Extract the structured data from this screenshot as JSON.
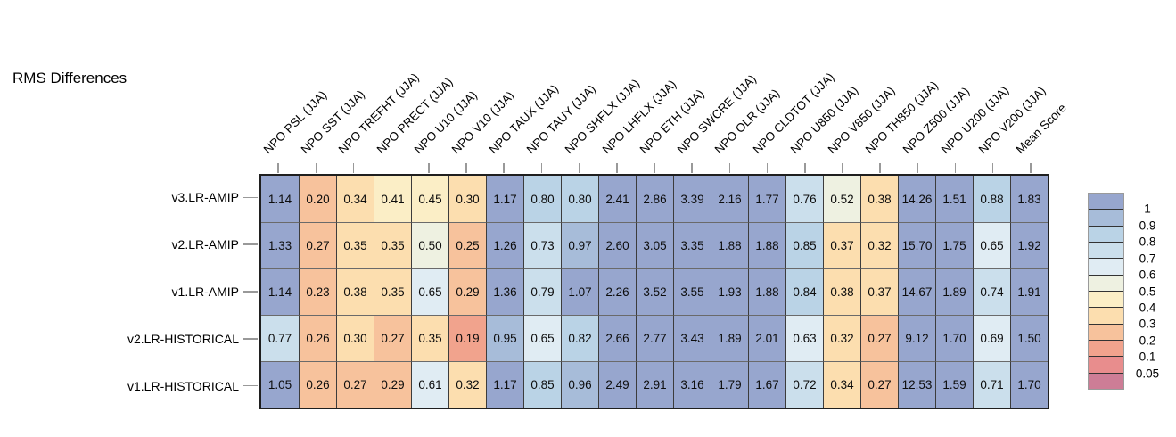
{
  "chart_data": {
    "type": "heatmap",
    "title": "RMS Differences",
    "columns": [
      "NPO PSL (JJA)",
      "NPO SST (JJA)",
      "NPO TREFHT (JJA)",
      "NPO PRECT (JJA)",
      "NPO U10 (JJA)",
      "NPO V10 (JJA)",
      "NPO TAUX (JJA)",
      "NPO TAUY (JJA)",
      "NPO SHFLX (JJA)",
      "NPO LHFLX (JJA)",
      "NPO ETH (JJA)",
      "NPO SWCRE (JJA)",
      "NPO OLR (JJA)",
      "NPO CLDTOT (JJA)",
      "NPO U850 (JJA)",
      "NPO V850 (JJA)",
      "NPO TH850 (JJA)",
      "NPO Z500 (JJA)",
      "NPO U200 (JJA)",
      "NPO V200 (JJA)",
      "Mean Score"
    ],
    "rows": [
      {
        "label": "v3.LR-AMIP",
        "values": [
          "1.14",
          "0.20",
          "0.34",
          "0.41",
          "0.45",
          "0.30",
          "1.17",
          "0.80",
          "0.80",
          "2.41",
          "2.86",
          "3.39",
          "2.16",
          "1.77",
          "0.76",
          "0.52",
          "0.38",
          "14.26",
          "1.51",
          "0.88",
          "1.83"
        ]
      },
      {
        "label": "v2.LR-AMIP",
        "values": [
          "1.33",
          "0.27",
          "0.35",
          "0.35",
          "0.50",
          "0.25",
          "1.26",
          "0.73",
          "0.97",
          "2.60",
          "3.05",
          "3.35",
          "1.88",
          "1.88",
          "0.85",
          "0.37",
          "0.32",
          "15.70",
          "1.75",
          "0.65",
          "1.92"
        ]
      },
      {
        "label": "v1.LR-AMIP",
        "values": [
          "1.14",
          "0.23",
          "0.38",
          "0.35",
          "0.65",
          "0.29",
          "1.36",
          "0.79",
          "1.07",
          "2.26",
          "3.52",
          "3.55",
          "1.93",
          "1.88",
          "0.84",
          "0.38",
          "0.37",
          "14.67",
          "1.89",
          "0.74",
          "1.91"
        ]
      },
      {
        "label": "v2.LR-HISTORICAL",
        "values": [
          "0.77",
          "0.26",
          "0.30",
          "0.27",
          "0.35",
          "0.19",
          "0.95",
          "0.65",
          "0.82",
          "2.66",
          "2.77",
          "3.43",
          "1.89",
          "2.01",
          "0.63",
          "0.32",
          "0.27",
          "9.12",
          "1.70",
          "0.69",
          "1.50"
        ]
      },
      {
        "label": "v1.LR-HISTORICAL",
        "values": [
          "1.05",
          "0.26",
          "0.27",
          "0.29",
          "0.61",
          "0.32",
          "1.17",
          "0.85",
          "0.96",
          "2.49",
          "2.91",
          "3.16",
          "1.79",
          "1.67",
          "0.72",
          "0.34",
          "0.27",
          "12.53",
          "1.59",
          "0.71",
          "1.70"
        ]
      }
    ],
    "legend": {
      "labels": [
        "1",
        "0.9",
        "0.8",
        "0.7",
        "0.6",
        "0.5",
        "0.4",
        "0.3",
        "0.2",
        "0.1",
        "0.05"
      ],
      "thresholds": [
        1,
        0.9,
        0.8,
        0.7,
        0.6,
        0.5,
        0.4,
        0.3,
        0.2,
        0.1,
        0.05
      ],
      "colors": [
        "#97a6ce",
        "#a7bcd9",
        "#bad3e6",
        "#cbdfec",
        "#e0ecf3",
        "#eef1e1",
        "#fbeec6",
        "#fcdeaf",
        "#f7c29c",
        "#f1a38d",
        "#e88d8d",
        "#cd7d96"
      ],
      "position": "right"
    },
    "grid": true,
    "value_range_note": ""
  }
}
